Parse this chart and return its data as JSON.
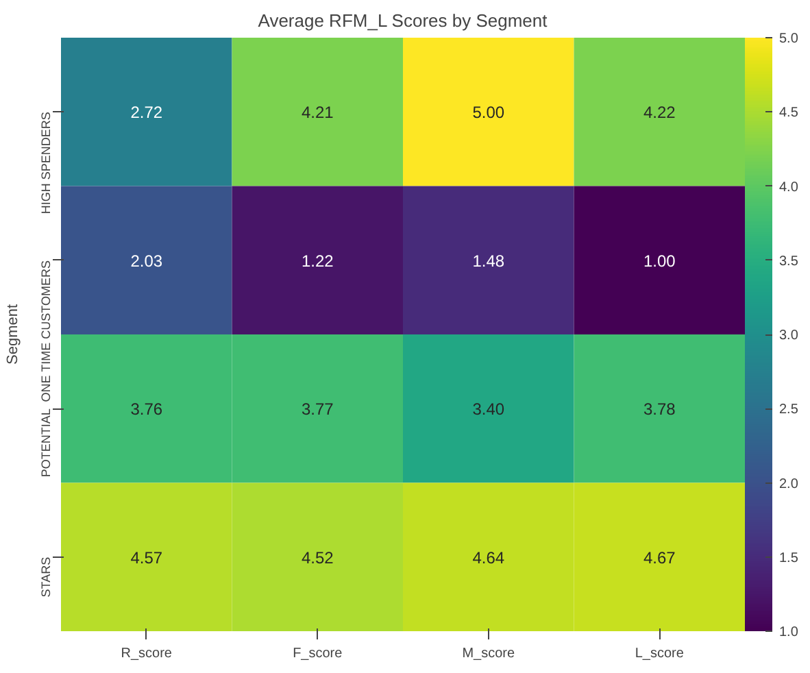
{
  "chart_data": {
    "type": "heatmap",
    "title": "Average RFM_L Scores by Segment",
    "ylabel": "Segment",
    "categories": [
      "R_score",
      "F_score",
      "M_score",
      "L_score"
    ],
    "y_categories": [
      "HIGH SPENDERS",
      "ONE TIME CUSTOMERS",
      "POTENTIAL",
      "STARS"
    ],
    "cells": [
      [
        2.72,
        4.21,
        5.0,
        4.22
      ],
      [
        2.03,
        1.22,
        1.48,
        1.0
      ],
      [
        3.76,
        3.77,
        3.4,
        3.78
      ],
      [
        4.57,
        4.52,
        4.64,
        4.67
      ]
    ],
    "cell_labels": [
      [
        "2.72",
        "4.21",
        "5.00",
        "4.22"
      ],
      [
        "2.03",
        "1.22",
        "1.48",
        "1.00"
      ],
      [
        "3.76",
        "3.77",
        "3.40",
        "3.78"
      ],
      [
        "4.57",
        "4.52",
        "4.64",
        "4.67"
      ]
    ],
    "clim": [
      1.0,
      5.0
    ],
    "cticks": [
      {
        "value": 1.0,
        "label": "1.0"
      },
      {
        "value": 1.5,
        "label": "1.5"
      },
      {
        "value": 2.0,
        "label": "2.0"
      },
      {
        "value": 2.5,
        "label": "2.5"
      },
      {
        "value": 3.0,
        "label": "3.0"
      },
      {
        "value": 3.5,
        "label": "3.5"
      },
      {
        "value": 4.0,
        "label": "4.0"
      },
      {
        "value": 4.5,
        "label": "4.5"
      },
      {
        "value": 5.0,
        "label": "5.0"
      }
    ]
  }
}
